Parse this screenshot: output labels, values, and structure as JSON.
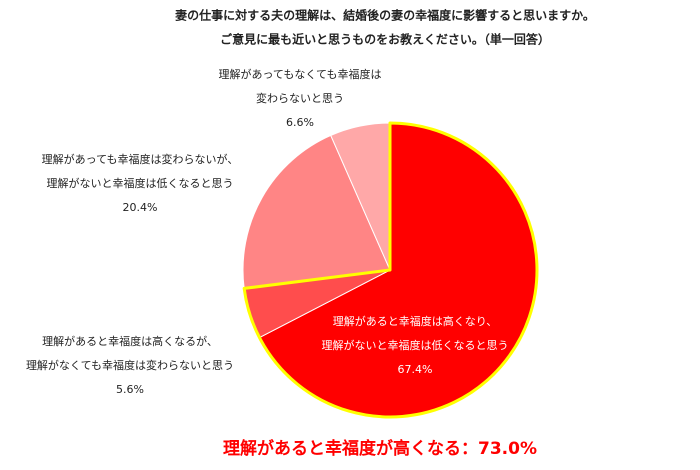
{
  "chart_data": {
    "type": "pie",
    "title": [
      "妻の仕事に対する夫の理解は、結婚後の妻の幸福度に影響すると思いますか。",
      "ご意見に最も近いと思うものをお教えください。（単一回答）"
    ],
    "labels": [
      [
        "理解があると幸福度は高くなり、",
        "理解がないと幸福度は低くなると思う"
      ],
      [
        "理解があると幸福度は高くなるが、",
        "理解がなくても幸福度は変わらないと思う"
      ],
      [
        "理解があっても幸福度は変わらないが、",
        "理解がないと幸福度は低くなると思う"
      ],
      [
        "理解があってもなくても幸福度は",
        "変わらないと思う"
      ]
    ],
    "values": [
      67.4,
      5.6,
      20.4,
      6.6
    ],
    "value_labels": [
      "67.4%",
      "5.6%",
      "20.4%",
      "6.6%"
    ],
    "colors": [
      "#ff0000",
      "#ff4d4d",
      "#ff8585",
      "#ffa8a8"
    ],
    "annotation": "理解があると幸福度が高くなる：73.0%"
  }
}
